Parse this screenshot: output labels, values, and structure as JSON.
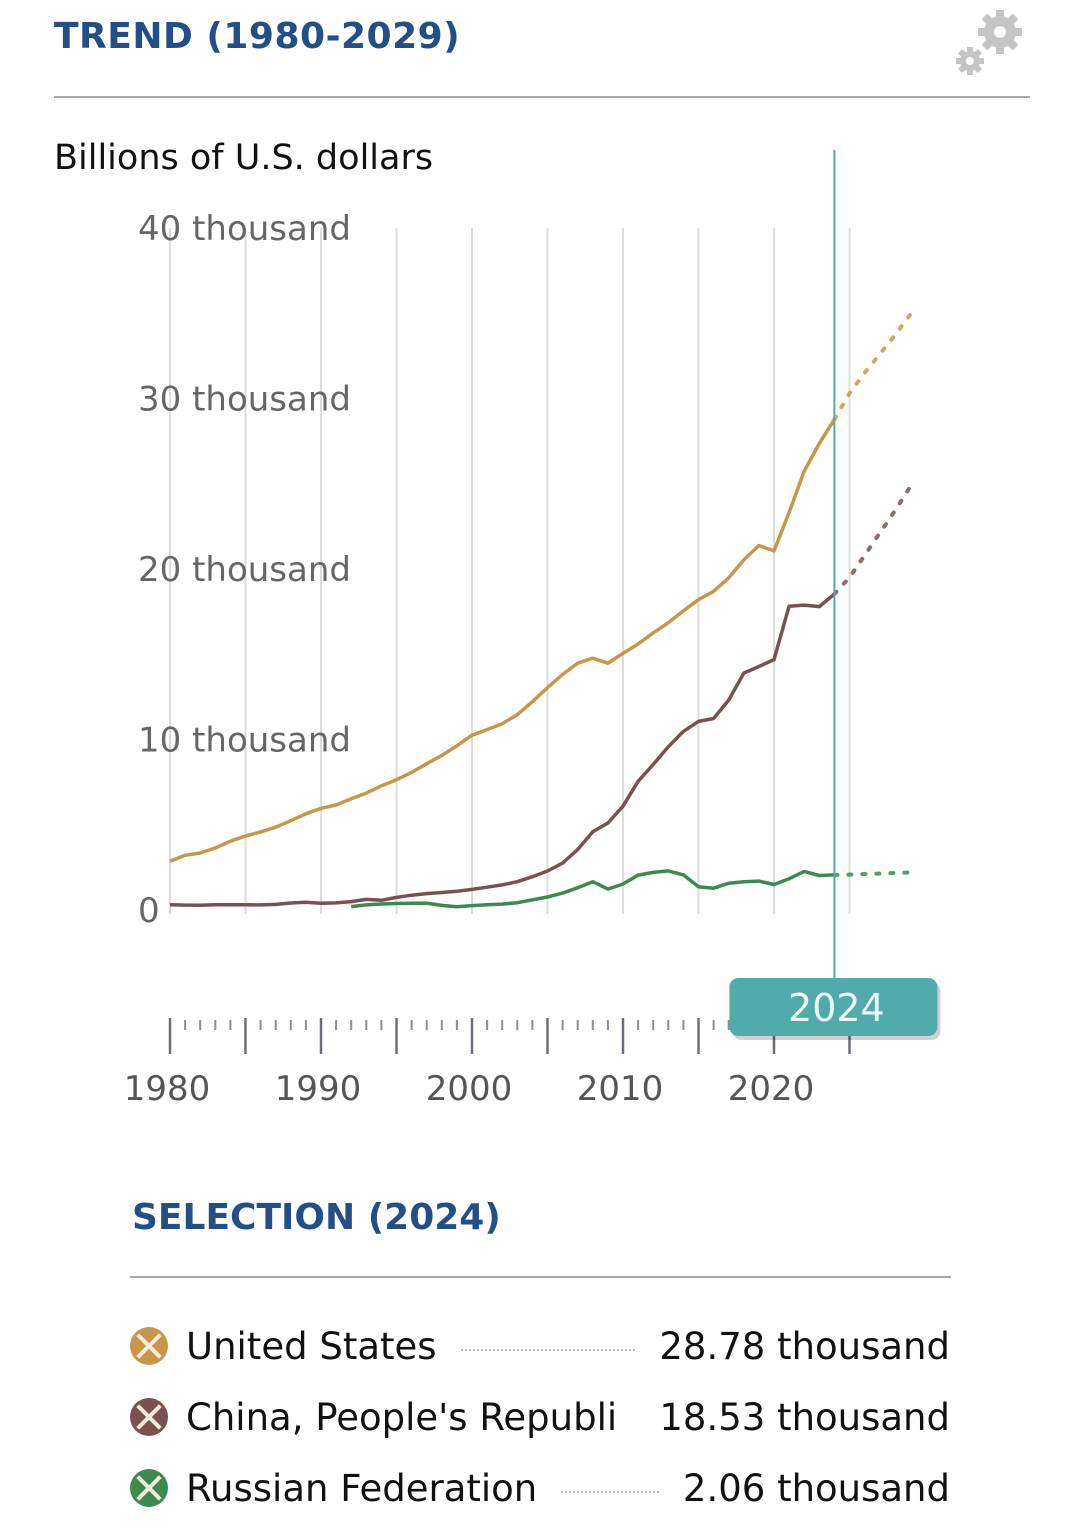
{
  "header": {
    "title": "TREND (1980-2029)",
    "settings_icon": "gears-icon"
  },
  "selection": {
    "title": "SELECTION (2024)",
    "items": [
      {
        "name": "United States",
        "value": "28.78 thousand",
        "color": "#c8964a"
      },
      {
        "name": "China, People's Republi",
        "value": "18.53 thousand",
        "color": "#7a5050"
      },
      {
        "name": "Russian Federation",
        "value": "2.06 thousand",
        "color": "#3d8a50"
      }
    ]
  },
  "chart_data": {
    "type": "line",
    "ylabel": "Billions of U.S. dollars",
    "ylim": [
      0,
      40000
    ],
    "xlim": [
      1980,
      2029
    ],
    "y_ticks": [
      {
        "v": 0,
        "label": "0"
      },
      {
        "v": 10000,
        "label": "10 thousand"
      },
      {
        "v": 20000,
        "label": "20 thousand"
      },
      {
        "v": 30000,
        "label": "30 thousand"
      },
      {
        "v": 40000,
        "label": "40 thousand"
      }
    ],
    "x_ticks": [
      1980,
      1990,
      2000,
      2010,
      2020
    ],
    "x_tick_labels": [
      "1980",
      "1990",
      "2000",
      "2010",
      "2020"
    ],
    "selected_year": "2024",
    "projection_start": 2024,
    "cursor_color": "#52abab",
    "grid": "vertical",
    "series": [
      {
        "name": "United States",
        "color": "#c8964a",
        "start": 1980,
        "values": [
          2857,
          3207,
          3343,
          3634,
          4037,
          4339,
          4580,
          4855,
          5236,
          5642,
          5963,
          6158,
          6520,
          6859,
          7287,
          7640,
          8073,
          8578,
          9063,
          9631,
          10251,
          10582,
          10929,
          11456,
          12217,
          13039,
          13816,
          14474,
          14770,
          14478,
          15049,
          15600,
          16254,
          16843,
          17551,
          18206,
          18695,
          19477,
          20533,
          21381,
          21060,
          23315,
          25744,
          27361,
          28781,
          30300,
          31500,
          32600,
          33700,
          34900
        ]
      },
      {
        "name": "China, People's Republic of",
        "color": "#7a5050",
        "start": 1980,
        "values": [
          303,
          289,
          283,
          305,
          313,
          309,
          300,
          327,
          408,
          457,
          394,
          415,
          495,
          623,
          566,
          737,
          867,
          962,
          1029,
          1094,
          1211,
          1339,
          1471,
          1660,
          1955,
          2286,
          2752,
          3550,
          4594,
          5101,
          6087,
          7551,
          8532,
          9570,
          10475,
          11061,
          11233,
          12310,
          13895,
          14280,
          14688,
          17820,
          17882,
          17795,
          18533,
          19500,
          20800,
          22100,
          23400,
          24800
        ]
      },
      {
        "name": "Russian Federation",
        "color": "#3d8a50",
        "start": 1992,
        "values": [
          200,
          300,
          350,
          380,
          392,
          405,
          271,
          196,
          260,
          307,
          345,
          430,
          591,
          764,
          990,
          1300,
          1661,
          1223,
          1525,
          2046,
          2208,
          2292,
          2059,
          1363,
          1277,
          1574,
          1657,
          1693,
          1493,
          1837,
          2266,
          2021,
          2056,
          2076,
          2110,
          2140,
          2170,
          2200
        ]
      }
    ]
  }
}
